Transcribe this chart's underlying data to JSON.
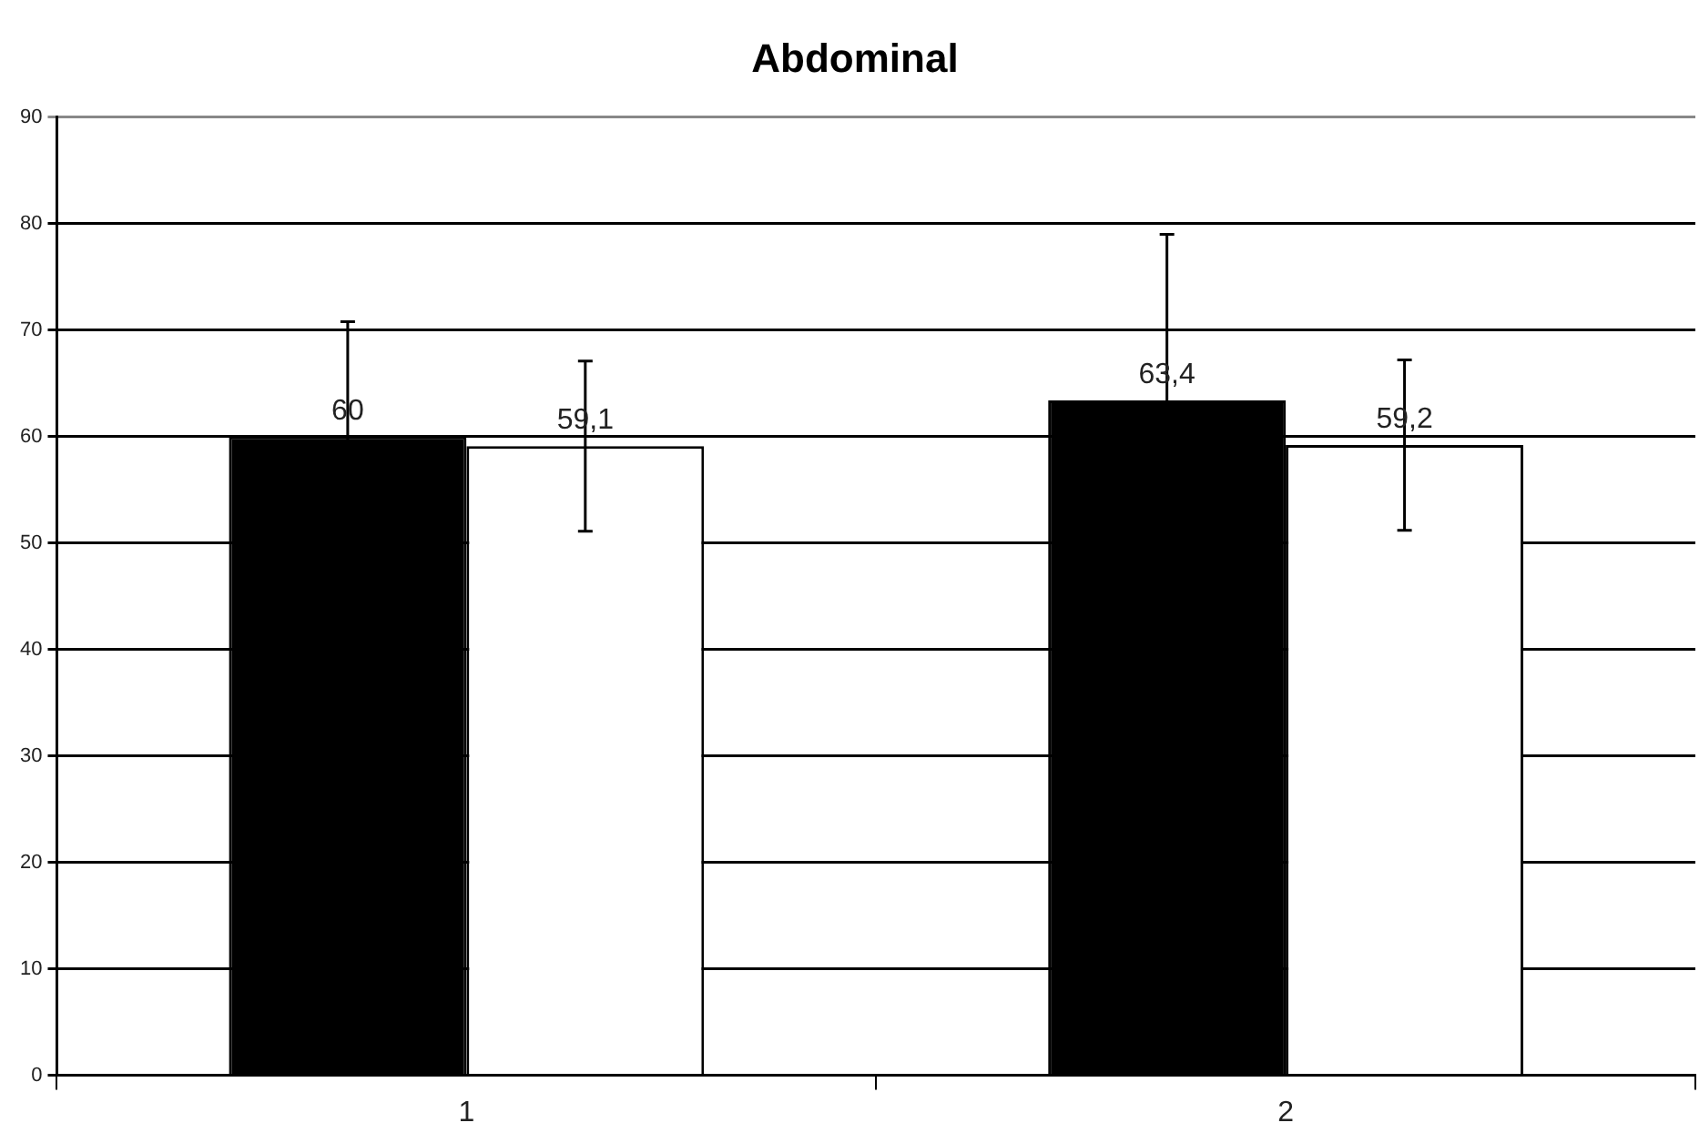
{
  "chart_data": {
    "type": "bar",
    "title": "Abdominal",
    "categories": [
      "1",
      "2"
    ],
    "series": [
      {
        "color": "#000000",
        "values": [
          60,
          63.4
        ],
        "errors": [
          10.8,
          15.6
        ],
        "value_labels": [
          "60",
          "63,4"
        ]
      },
      {
        "color": "#ffffff",
        "values": [
          59.1,
          59.2
        ],
        "errors": [
          8,
          8
        ],
        "value_labels": [
          "59,1",
          "59,2"
        ]
      }
    ],
    "ylim": [
      0,
      90
    ],
    "yticks": [
      0,
      10,
      20,
      30,
      40,
      50,
      60,
      70,
      80,
      90
    ],
    "grid": "y",
    "legend": false
  }
}
